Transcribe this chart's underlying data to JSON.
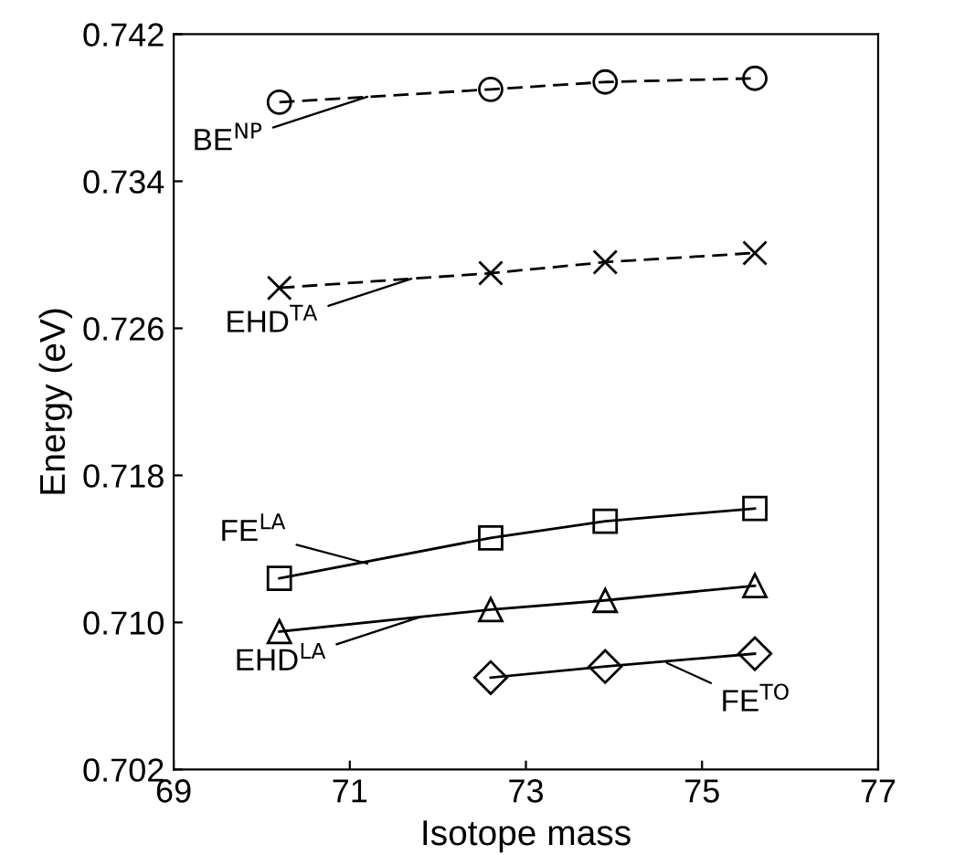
{
  "chart_data": {
    "type": "line",
    "xlabel": "Isotope mass",
    "ylabel": "Energy (eV)",
    "xlim": [
      69,
      77
    ],
    "xticks": [
      69,
      71,
      73,
      75,
      77
    ],
    "ylim": [
      0.702,
      0.742
    ],
    "yticks": [
      0.702,
      {
        "value": 0.71,
        "label": "0.710"
      },
      0.718,
      0.726,
      0.734,
      0.742
    ],
    "series": [
      {
        "x": [
          70.2,
          72.6,
          73.9,
          75.6
        ],
        "values": [
          0.7383,
          0.739,
          0.7394,
          0.7396
        ],
        "color": "#000000",
        "marker": "circle",
        "line_style": "dashed"
      },
      {
        "x": [
          70.2,
          72.6,
          73.9,
          75.6
        ],
        "values": [
          0.7282,
          0.729,
          0.7296,
          0.7301
        ],
        "color": "#000000",
        "marker": "cross",
        "line_style": "dashed"
      },
      {
        "x": [
          70.2,
          72.6,
          73.9,
          75.6
        ],
        "values": [
          0.7124,
          0.7146,
          0.7155,
          0.7162
        ],
        "color": "#000000",
        "marker": "square",
        "line_style": "solid"
      },
      {
        "x": [
          70.2,
          72.6,
          73.9,
          75.6
        ],
        "values": [
          0.7095,
          0.7107,
          0.7112,
          0.712
        ],
        "color": "#000000",
        "marker": "triangle",
        "line_style": "solid"
      },
      {
        "x": [
          72.6,
          73.9,
          75.6
        ],
        "values": [
          0.707,
          0.7076,
          0.7083
        ],
        "color": "#000000",
        "marker": "diamond",
        "line_style": "solid"
      }
    ],
    "annotations": [
      {
        "text": "BE$^{NP}$",
        "x": 71.2,
        "y": 0.7386
      },
      {
        "text": "EHD$^{TA}$",
        "x": 71.7,
        "y": 0.7287
      },
      {
        "text": "FE$^{LA}$",
        "x": 71.2,
        "y": 0.7132
      },
      {
        "text": "EHD$^{LA}$",
        "x": 71.8,
        "y": 0.7103
      },
      {
        "text": "FE$^{TO}$",
        "x": 74.6,
        "y": 0.7078
      }
    ]
  }
}
